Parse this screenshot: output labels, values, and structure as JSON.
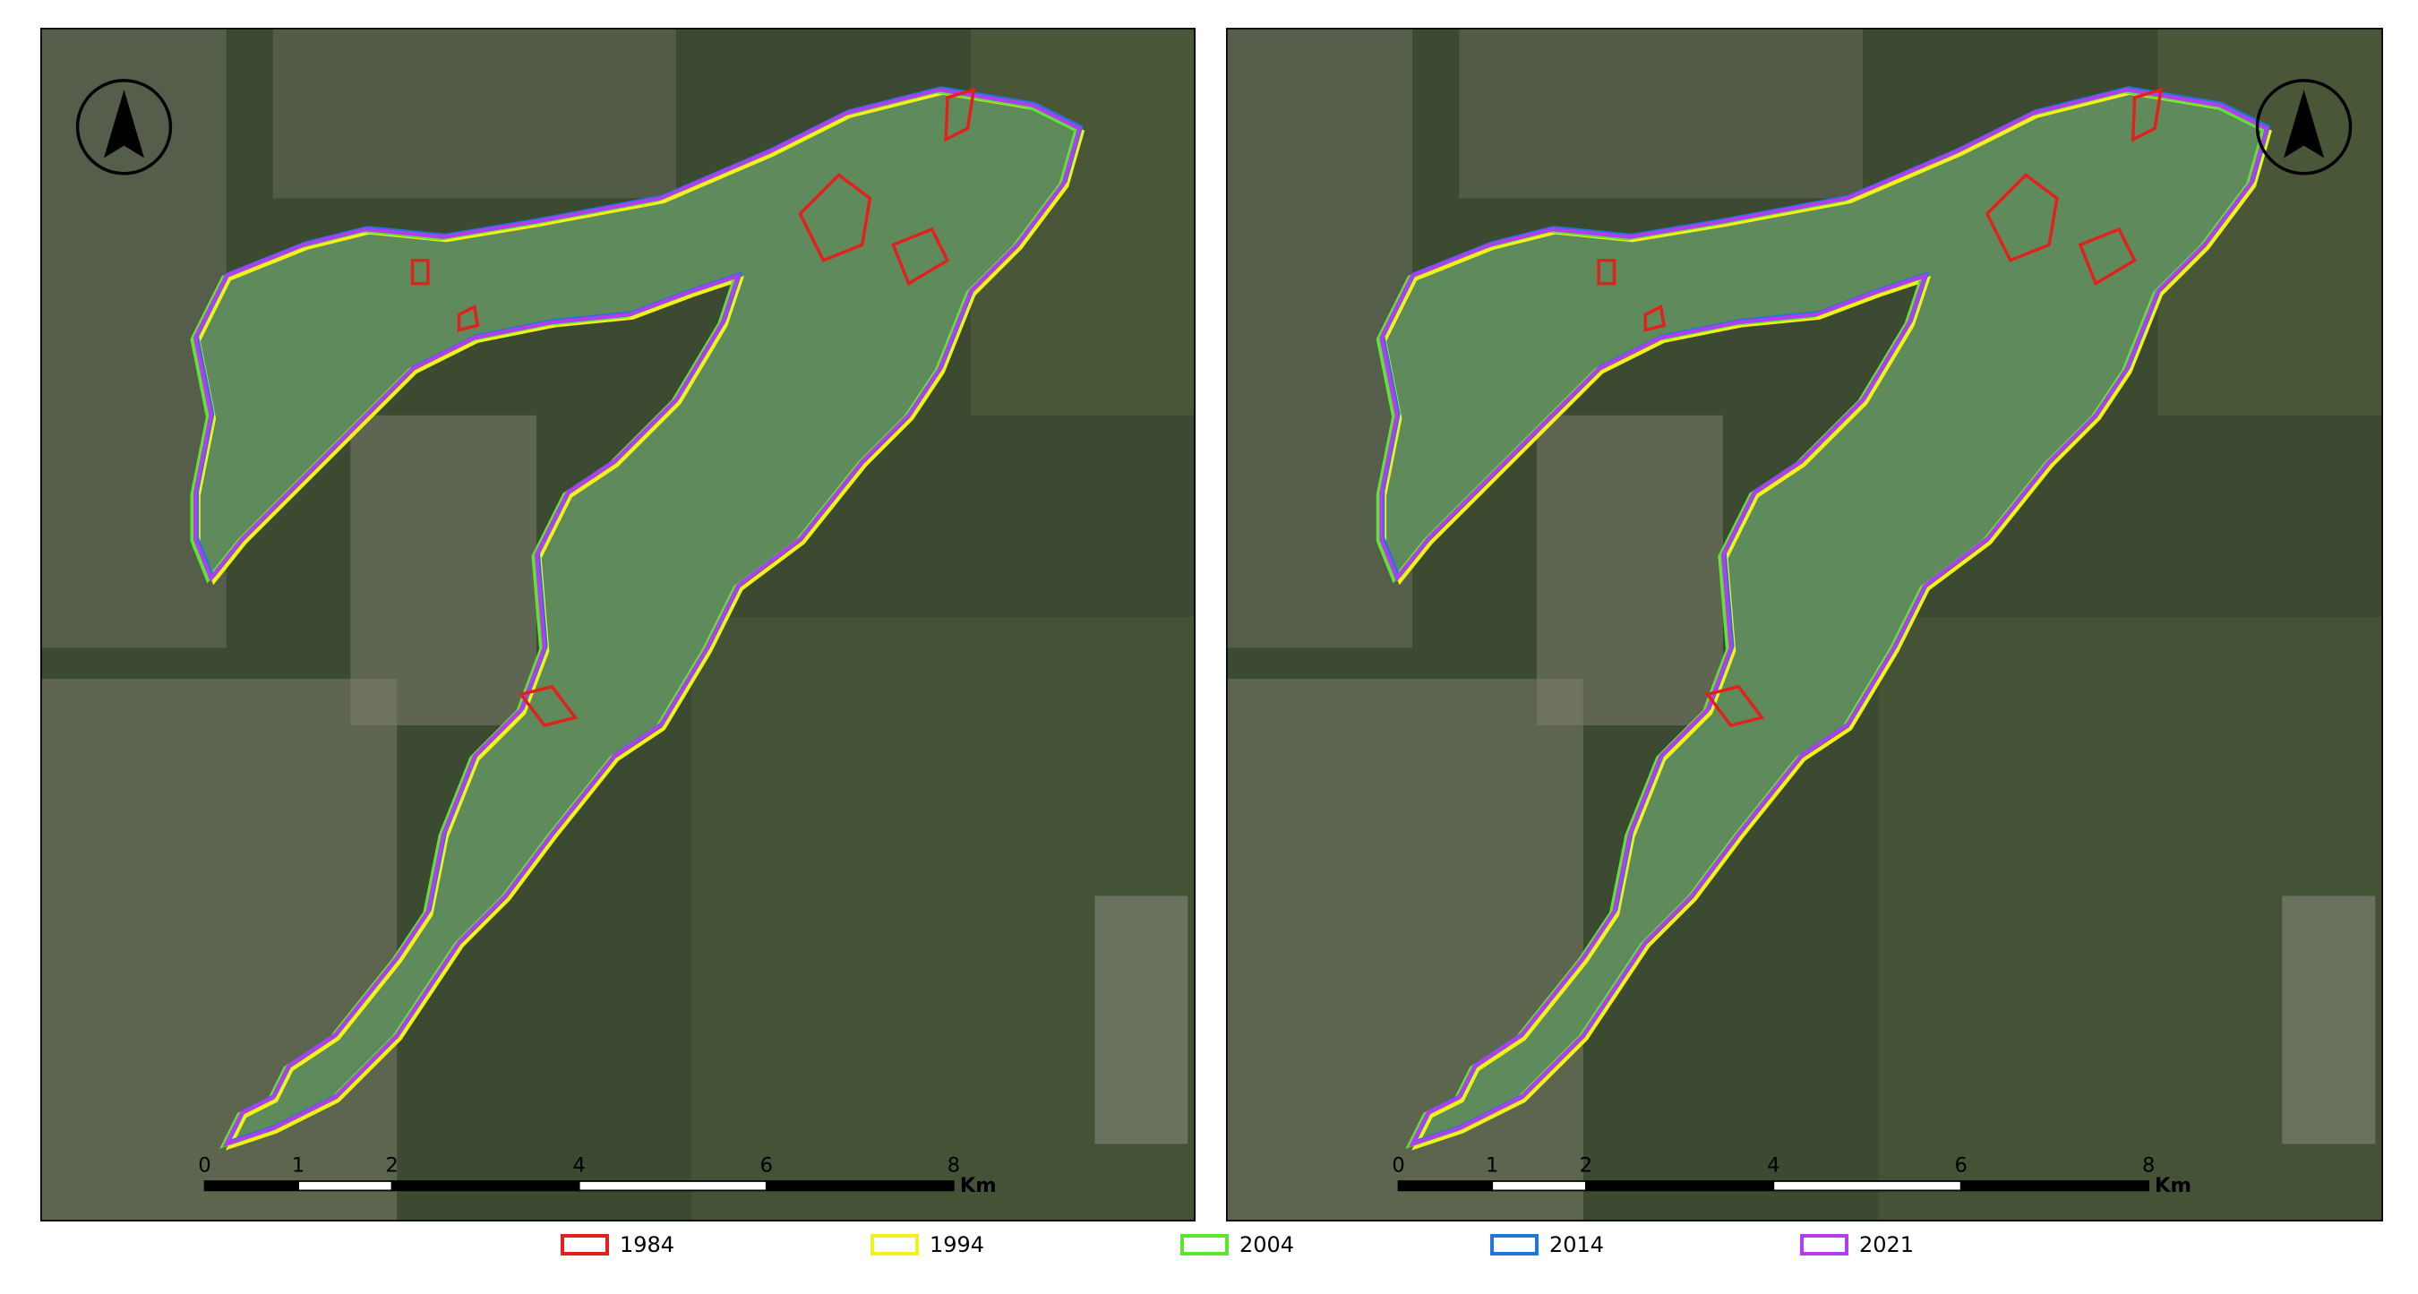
{
  "panels": [
    {
      "scale_bar": {
        "ticks": [
          0,
          1,
          2,
          4,
          6,
          8
        ],
        "unit": "Km"
      },
      "north_arrow": "left"
    },
    {
      "scale_bar": {
        "ticks": [
          0,
          1,
          2,
          4,
          6,
          8
        ],
        "unit": "Km"
      },
      "north_arrow": "right"
    }
  ],
  "legend": [
    {
      "label": "1984",
      "color": "#e3201b"
    },
    {
      "label": "1994",
      "color": "#f2f21a"
    },
    {
      "label": "2004",
      "color": "#5ce62e"
    },
    {
      "label": "2014",
      "color": "#1f78d8"
    },
    {
      "label": "2021",
      "color": "#b43cf0"
    }
  ]
}
